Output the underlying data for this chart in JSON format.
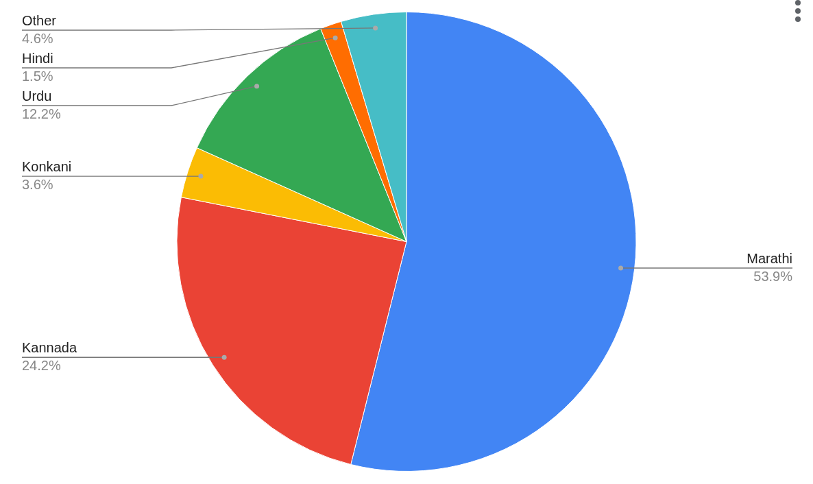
{
  "chart_data": {
    "type": "pie",
    "categories": [
      "Marathi",
      "Kannada",
      "Konkani",
      "Urdu",
      "Hindi",
      "Other"
    ],
    "values": [
      53.9,
      24.2,
      3.6,
      12.2,
      1.5,
      4.6
    ],
    "colors": [
      "#4285f4",
      "#ea4335",
      "#fbbc04",
      "#34a853",
      "#ff6d01",
      "#46bdc6"
    ],
    "value_labels": [
      "53.9%",
      "24.2%",
      "3.6%",
      "12.2%",
      "1.5%",
      "4.6%"
    ],
    "legend": false
  }
}
